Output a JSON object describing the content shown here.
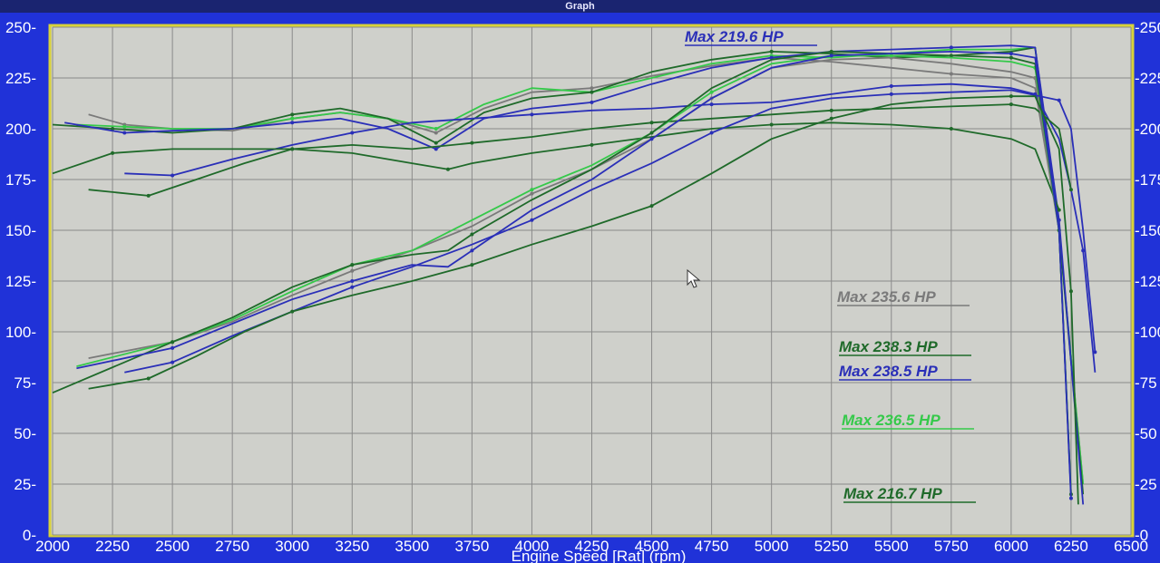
{
  "window": {
    "title": "Graph"
  },
  "chart_data": {
    "type": "line",
    "xlabel": "Engine Speed [Rat] (rpm)",
    "ylabel": "",
    "xlim": [
      2000,
      6500
    ],
    "ylim": [
      0,
      250
    ],
    "x_ticks": [
      2000,
      2250,
      2500,
      2750,
      3000,
      3250,
      3500,
      3750,
      4000,
      4250,
      4500,
      4750,
      5000,
      5250,
      5500,
      5750,
      6000,
      6250,
      6500
    ],
    "y_ticks_left": [
      0,
      25,
      50,
      75,
      100,
      125,
      150,
      175,
      200,
      225,
      250
    ],
    "y_ticks_right": [
      0,
      25,
      50,
      75,
      100,
      125,
      150,
      175,
      200,
      225,
      250
    ],
    "grid": true,
    "annotations": [
      {
        "text": "Max 219.6 HP",
        "color": "#2a2fb8"
      },
      {
        "text": "Max 235.6 HP",
        "color": "#7a7a7a"
      },
      {
        "text": "Max 238.3 HP",
        "color": "#1f6a2a"
      },
      {
        "text": "Max 238.5 HP",
        "color": "#2a2fb8"
      },
      {
        "text": "Max 236.5 HP",
        "color": "#35c94a"
      },
      {
        "text": "Max 216.7 HP",
        "color": "#1f6a2a"
      }
    ],
    "series": [
      {
        "color": "#7a7a7a",
        "group": "torque",
        "x": [
          2150,
          2300,
          2500,
          2750,
          3000,
          3200,
          3400,
          3600,
          3800,
          4000,
          4250,
          4500,
          4750,
          5000,
          5250,
          5500,
          5750,
          6000,
          6100,
          6200,
          6300
        ],
        "y": [
          207,
          202,
          200,
          199,
          205,
          208,
          205,
          198,
          210,
          218,
          220,
          226,
          231,
          235,
          233,
          230,
          227,
          225,
          220,
          150,
          25
        ]
      },
      {
        "color": "#35c94a",
        "group": "torque",
        "x": [
          2100,
          2300,
          2500,
          2750,
          3000,
          3200,
          3400,
          3600,
          3800,
          4000,
          4250,
          4500,
          4750,
          5000,
          5250,
          5500,
          5750,
          6000,
          6100,
          6200,
          6300
        ],
        "y": [
          202,
          201,
          200,
          200,
          205,
          208,
          205,
          200,
          212,
          220,
          218,
          225,
          232,
          236,
          235,
          237,
          239,
          239,
          240,
          150,
          25
        ]
      },
      {
        "color": "#1f6a2a",
        "group": "torque",
        "x": [
          2000,
          2250,
          2500,
          2750,
          3000,
          3200,
          3400,
          3600,
          3800,
          4000,
          4250,
          4500,
          4750,
          5000,
          5250,
          5500,
          5750,
          6000,
          6100,
          6200,
          6300
        ],
        "y": [
          202,
          200,
          198,
          200,
          207,
          210,
          205,
          193,
          208,
          215,
          218,
          228,
          234,
          238,
          237,
          235,
          236,
          238,
          240,
          150,
          20
        ]
      },
      {
        "color": "#2a2fb8",
        "group": "torque",
        "x": [
          2050,
          2300,
          2500,
          2750,
          3000,
          3200,
          3400,
          3600,
          3800,
          4000,
          4250,
          4500,
          4750,
          5000,
          5250,
          5500,
          5750,
          6000,
          6100,
          6200,
          6300
        ],
        "y": [
          203,
          198,
          199,
          200,
          203,
          205,
          200,
          190,
          205,
          210,
          213,
          222,
          230,
          235,
          238,
          239,
          240,
          241,
          240,
          155,
          15
        ]
      },
      {
        "color": "#2a2fb8",
        "group": "torque",
        "x": [
          2300,
          2500,
          2750,
          3000,
          3250,
          3500,
          3750,
          4000,
          4250,
          4500,
          4750,
          5000,
          5250,
          5500,
          5750,
          6000,
          6100,
          6200,
          6250,
          6300,
          6350
        ],
        "y": [
          178,
          177,
          185,
          192,
          198,
          203,
          205,
          207,
          209,
          210,
          212,
          213,
          217,
          221,
          222,
          220,
          217,
          195,
          170,
          140,
          80
        ]
      },
      {
        "color": "#1f6a2a",
        "group": "torque",
        "x": [
          2000,
          2250,
          2500,
          2750,
          3000,
          3250,
          3500,
          3650,
          3750,
          4000,
          4250,
          4500,
          4750,
          5000,
          5250,
          5500,
          5750,
          6000,
          6100,
          6200
        ],
        "y": [
          178,
          188,
          190,
          190,
          190,
          188,
          183,
          180,
          183,
          188,
          192,
          196,
          200,
          202,
          203,
          202,
          200,
          195,
          190,
          160
        ]
      },
      {
        "color": "#1f6a2a",
        "group": "torque",
        "x": [
          2150,
          2400,
          2600,
          2800,
          3000,
          3250,
          3500,
          3750,
          4000,
          4250,
          4500,
          4750,
          5000,
          5250,
          5500,
          5750,
          6000,
          6100,
          6200,
          6250
        ],
        "y": [
          170,
          167,
          175,
          183,
          190,
          192,
          190,
          193,
          196,
          200,
          203,
          205,
          207,
          209,
          210,
          211,
          212,
          210,
          200,
          170
        ]
      },
      {
        "color": "#7a7a7a",
        "group": "power",
        "x": [
          2150,
          2500,
          2750,
          3000,
          3250,
          3500,
          3750,
          4000,
          4250,
          4500,
          4750,
          5000,
          5250,
          5500,
          5750,
          6000,
          6100,
          6200,
          6250
        ],
        "y": [
          87,
          95,
          105,
          118,
          130,
          140,
          152,
          168,
          180,
          195,
          215,
          230,
          234,
          235,
          232,
          228,
          225,
          150,
          20
        ]
      },
      {
        "color": "#35c94a",
        "group": "power",
        "x": [
          2100,
          2500,
          2750,
          3000,
          3250,
          3500,
          3750,
          4000,
          4250,
          4500,
          4750,
          5000,
          5250,
          5500,
          5750,
          6000,
          6100,
          6200,
          6250
        ],
        "y": [
          83,
          95,
          106,
          120,
          133,
          140,
          155,
          170,
          182,
          198,
          218,
          232,
          236,
          236,
          235,
          233,
          230,
          150,
          20
        ]
      },
      {
        "color": "#1f6a2a",
        "group": "power",
        "x": [
          2000,
          2500,
          2750,
          3000,
          3250,
          3500,
          3650,
          3750,
          4000,
          4250,
          4500,
          4750,
          5000,
          5250,
          5500,
          5750,
          6000,
          6100,
          6200,
          6250
        ],
        "y": [
          70,
          95,
          107,
          122,
          133,
          138,
          140,
          148,
          165,
          180,
          198,
          220,
          234,
          238,
          237,
          236,
          235,
          232,
          150,
          20
        ]
      },
      {
        "color": "#2a2fb8",
        "group": "power",
        "x": [
          2100,
          2500,
          2750,
          3000,
          3250,
          3500,
          3650,
          3750,
          4000,
          4250,
          4500,
          4750,
          5000,
          5250,
          5500,
          5750,
          6000,
          6100,
          6200,
          6250
        ],
        "y": [
          82,
          92,
          104,
          116,
          125,
          133,
          132,
          140,
          160,
          175,
          195,
          215,
          230,
          236,
          237,
          238,
          237,
          235,
          150,
          18
        ]
      },
      {
        "color": "#2a2fb8",
        "group": "power",
        "x": [
          2300,
          2500,
          2750,
          3000,
          3250,
          3500,
          3750,
          4000,
          4250,
          4500,
          4750,
          5000,
          5250,
          5500,
          5750,
          6000,
          6200,
          6250,
          6300,
          6350
        ],
        "y": [
          80,
          85,
          98,
          110,
          122,
          132,
          143,
          155,
          170,
          183,
          198,
          210,
          215,
          217,
          218,
          219,
          214,
          200,
          150,
          90
        ]
      },
      {
        "color": "#1f6a2a",
        "group": "power",
        "x": [
          2150,
          2400,
          2600,
          2800,
          3000,
          3250,
          3500,
          3750,
          4000,
          4250,
          4500,
          4750,
          5000,
          5250,
          5500,
          5750,
          6000,
          6100,
          6200,
          6250,
          6280
        ],
        "y": [
          72,
          77,
          88,
          100,
          110,
          118,
          125,
          133,
          143,
          152,
          162,
          178,
          195,
          205,
          212,
          215,
          216,
          216,
          190,
          120,
          15
        ]
      }
    ]
  }
}
